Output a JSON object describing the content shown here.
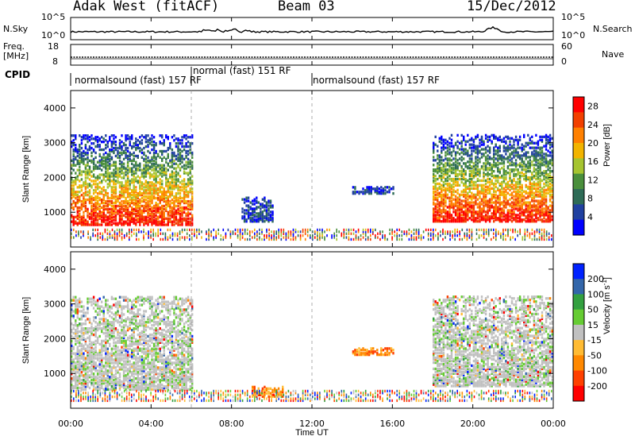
{
  "header": {
    "station": "Adak West (fitACF)",
    "beam": "Beam 03",
    "date": "15/Dec/2012"
  },
  "status_panels": {
    "nsky_label": "N.Sky",
    "nsearch_label": "N.Search",
    "freq_label": "Freq.",
    "freq_unit": "[MHz]",
    "nave_label": "Nave",
    "cpid_label": "CPID",
    "noise_ticks_left": [
      "10^5",
      "10^0"
    ],
    "noise_ticks_right": [
      "10^5",
      "10^0"
    ],
    "freq_ticks": [
      "18",
      "8"
    ],
    "nave_ticks": [
      "60",
      "0"
    ]
  },
  "cpid_segments": [
    {
      "label": "normalsound (fast) 157 RF",
      "start_hr": 0,
      "end_hr": 6
    },
    {
      "label": "normal (fast) 151 RF",
      "start_hr": 6,
      "end_hr": 12
    },
    {
      "label": "normalsound (fast) 157 RF",
      "start_hr": 12,
      "end_hr": 24
    }
  ],
  "colors": {
    "power_scale": [
      "#0000ff",
      "#2040a0",
      "#2e6b56",
      "#4a8f3c",
      "#a6c430",
      "#f2b400",
      "#ff8000",
      "#f24000",
      "#ff0000"
    ],
    "velocity_scale": [
      "#ff0000",
      "#ff4000",
      "#ff8800",
      "#ffbb33",
      "#c0c0c0",
      "#66cc33",
      "#33a040",
      "#3366aa",
      "#0022ff"
    ]
  },
  "chart_data": [
    {
      "type": "heatmap",
      "title": "Power",
      "xlabel": "Time UT",
      "ylabel": "Slant Range [km]",
      "x_ticks": [
        "00:00",
        "04:00",
        "08:00",
        "12:00",
        "16:00",
        "20:00",
        "00:00"
      ],
      "y_ticks": [
        "1000",
        "2000",
        "3000",
        "4000"
      ],
      "ylim": [
        0,
        4500
      ],
      "colorbar_label": "Power [dB]",
      "colorbar_ticks": [
        "4",
        "8",
        "12",
        "16",
        "20",
        "24",
        "28"
      ],
      "colorbar_range": [
        0,
        30
      ],
      "echo_regions": [
        {
          "t_start": 0,
          "t_end": 6,
          "range_low": 600,
          "range_high": 3200,
          "level": "high-near-low-far"
        },
        {
          "t_start": 8.5,
          "t_end": 10,
          "range_low": 700,
          "range_high": 1400,
          "level": "low"
        },
        {
          "t_start": 14,
          "t_end": 16,
          "range_low": 1500,
          "range_high": 1700,
          "level": "low"
        },
        {
          "t_start": 18,
          "t_end": 24,
          "range_low": 700,
          "range_high": 3200,
          "level": "high-near-low-far"
        }
      ]
    },
    {
      "type": "heatmap",
      "title": "Velocity",
      "xlabel": "Time UT",
      "ylabel": "Slant Range [km]",
      "x_ticks": [
        "00:00",
        "04:00",
        "08:00",
        "12:00",
        "16:00",
        "20:00",
        "00:00"
      ],
      "y_ticks": [
        "1000",
        "2000",
        "3000",
        "4000"
      ],
      "ylim": [
        0,
        4500
      ],
      "colorbar_label_main": "Velocity [m s",
      "colorbar_label_sup": "-1",
      "colorbar_label_end": "]",
      "colorbar_ticks": [
        "200",
        "100",
        "50",
        "15",
        "-15",
        "-50",
        "-100",
        "-200"
      ],
      "echo_regions": [
        {
          "t_start": 0,
          "t_end": 6,
          "range_low": 500,
          "range_high": 3200,
          "level": "ground-scatter"
        },
        {
          "t_start": 9,
          "t_end": 10.5,
          "range_low": 300,
          "range_high": 600,
          "level": "negative"
        },
        {
          "t_start": 14,
          "t_end": 16,
          "range_low": 1500,
          "range_high": 1700,
          "level": "negative"
        },
        {
          "t_start": 18,
          "t_end": 24,
          "range_low": 600,
          "range_high": 3200,
          "level": "ground-scatter"
        }
      ]
    }
  ]
}
